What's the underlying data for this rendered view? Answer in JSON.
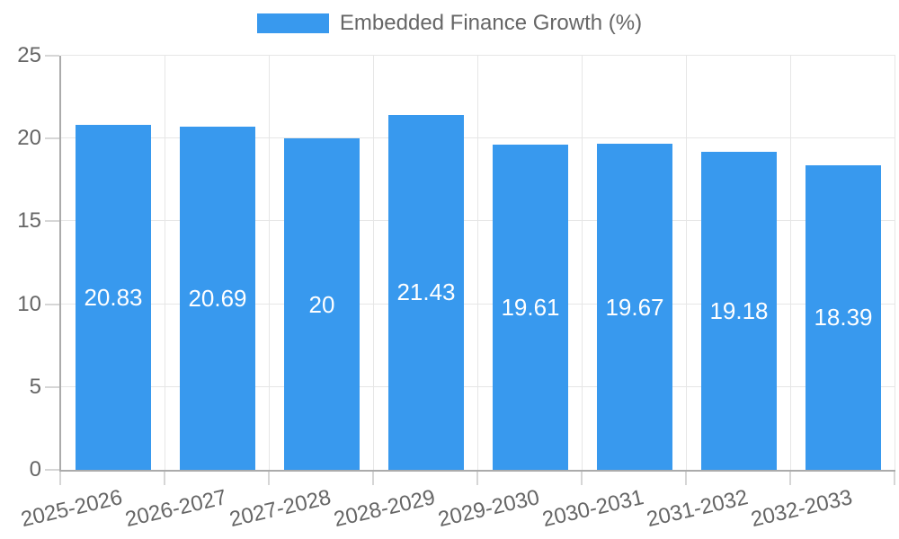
{
  "chart_data": {
    "type": "bar",
    "title": "",
    "legend": {
      "position": "top",
      "label": "Embedded Finance Growth (%)"
    },
    "categories": [
      "2025-2026",
      "2026-2027",
      "2027-2028",
      "2028-2029",
      "2029-2030",
      "2030-2031",
      "2031-2032",
      "2032-2033"
    ],
    "series": [
      {
        "name": "Embedded Finance Growth (%)",
        "values": [
          20.83,
          20.69,
          20,
          21.43,
          19.61,
          19.67,
          19.18,
          18.39
        ],
        "value_labels": [
          "20.83",
          "20.69",
          "20",
          "21.43",
          "19.61",
          "19.67",
          "19.18",
          "18.39"
        ]
      }
    ],
    "xlabel": "",
    "ylabel": "",
    "ylim": [
      0,
      25
    ],
    "yticks": [
      0,
      5,
      10,
      15,
      20,
      25
    ],
    "grid": true,
    "colors": {
      "bar": "#3899ee",
      "grid": "#e6e6e6",
      "axis_border": "#ababab",
      "tick_mark": "#d6d6d6",
      "tick_text": "#666666",
      "legend_text": "#666666",
      "bar_label_text": "#ffffff",
      "background": "#ffffff"
    }
  }
}
